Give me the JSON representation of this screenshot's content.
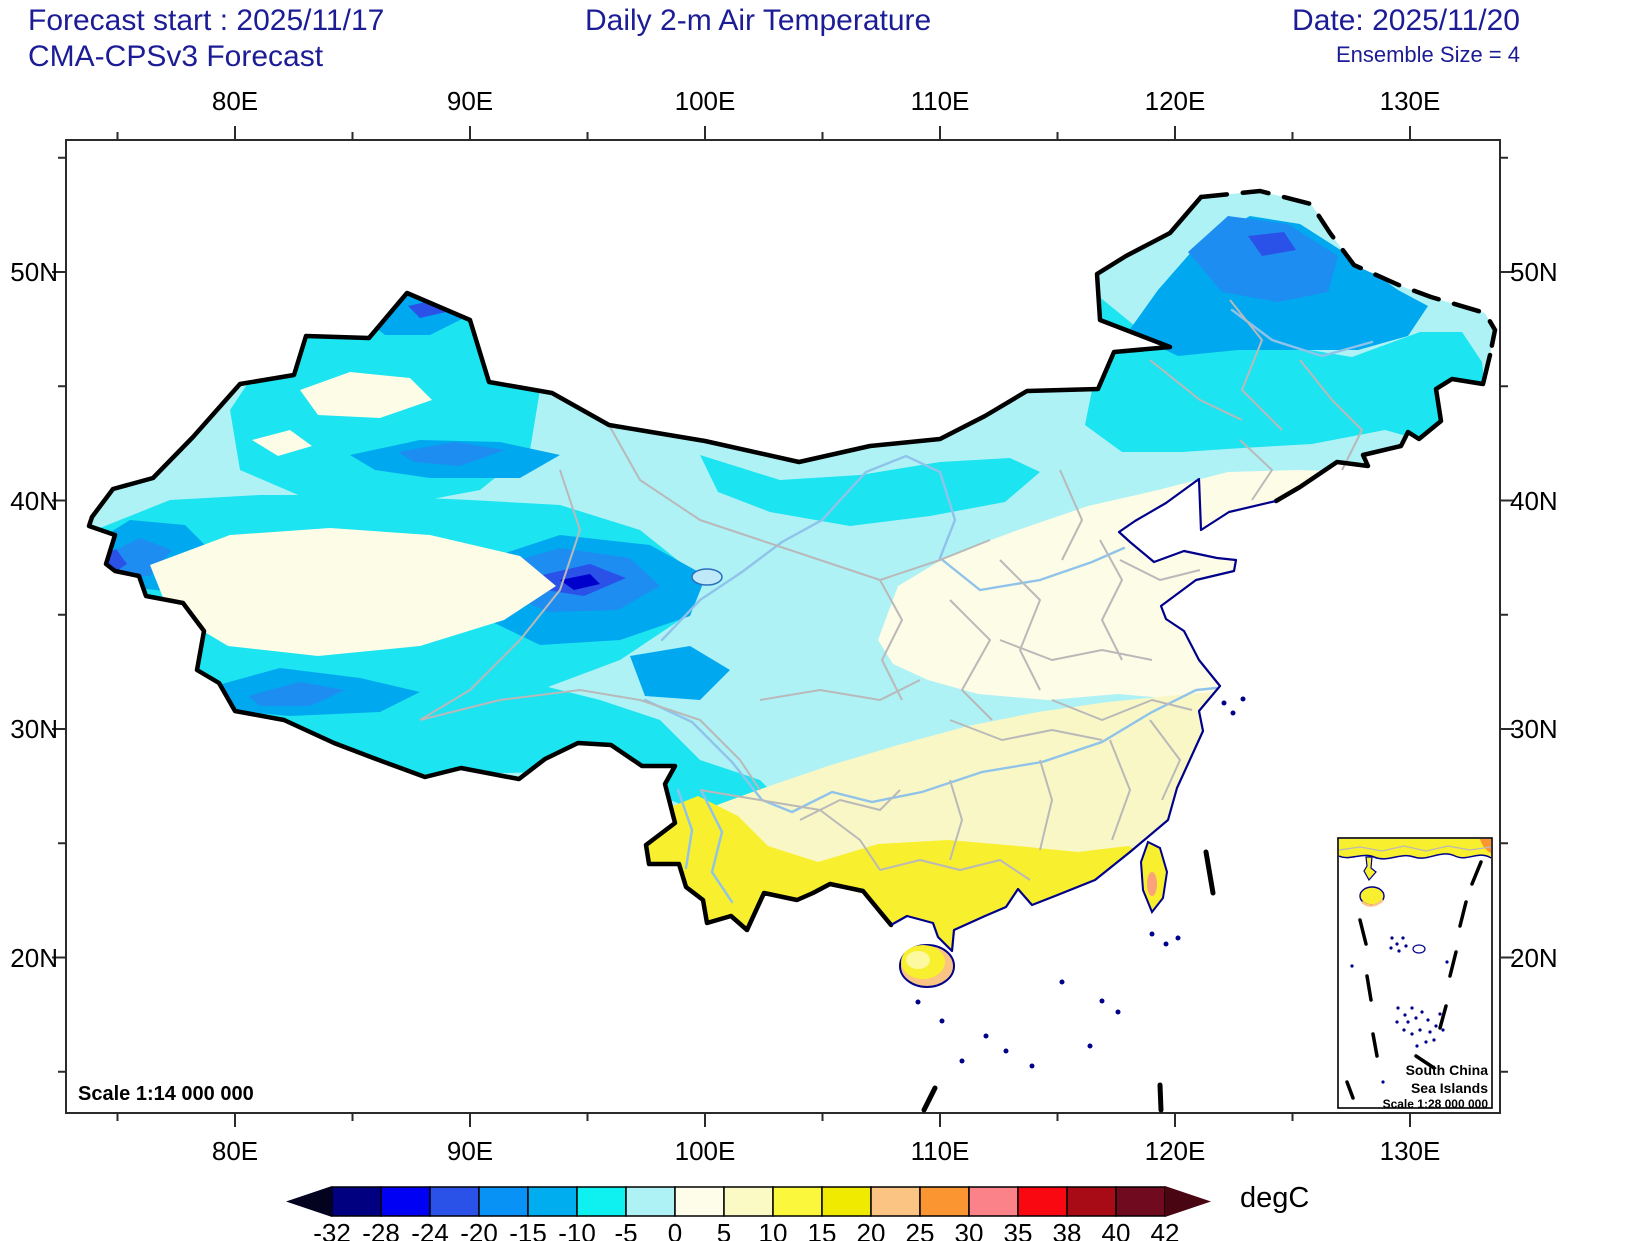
{
  "header": {
    "forecast_start": "Forecast start : 2025/11/17",
    "model": "CMA-CPSv3 Forecast",
    "title": "Daily 2-m Air Temperature",
    "date": "Date: 2025/11/20",
    "ensemble": "Ensemble Size = 4"
  },
  "axes": {
    "lon": {
      "labels": [
        "80E",
        "90E",
        "100E",
        "110E",
        "120E",
        "130E"
      ],
      "values": [
        80,
        90,
        100,
        110,
        120,
        130
      ],
      "minor": [
        75,
        85,
        95,
        105,
        115,
        125,
        135
      ]
    },
    "lat": {
      "labels": [
        "50N",
        "40N",
        "30N",
        "20N"
      ],
      "values": [
        50,
        40,
        30,
        20
      ],
      "minor": [
        55,
        45,
        35,
        25,
        15
      ]
    }
  },
  "map": {
    "scale_label": "Scale 1:14 000 000",
    "inset": {
      "line1": "South China",
      "line2": "Sea Islands",
      "line3": "Scale 1:28 000 000"
    }
  },
  "colorbar": {
    "unit": "degC",
    "boundary_labels": [
      "-32",
      "-28",
      "-24",
      "-20",
      "-15",
      "-10",
      "-5",
      "0",
      "5",
      "10",
      "15",
      "20",
      "25",
      "30",
      "35",
      "38",
      "40",
      "42"
    ],
    "cell_colors": [
      "#000080",
      "#0000f5",
      "#2a52e8",
      "#0992f5",
      "#00adee",
      "#0ff0f0",
      "#aef2f5",
      "#fdfde9",
      "#fbfac5",
      "#fbf73c",
      "#f0ea00",
      "#fbc483",
      "#fb9532",
      "#fb8289",
      "#f90812",
      "#a80b16",
      "#700a1e"
    ],
    "under_color": "#04031f",
    "over_color": "#4a0512",
    "outline": "#000000"
  },
  "map_palette": {
    "base_pale_cyan": "#aef2f6",
    "cyan": "#1ce4f0",
    "deep_sky": "#00a9ef",
    "dodger": "#1e8df2",
    "royal": "#2a52e8",
    "navy_spot": "#0000cd",
    "ivory": "#fdfce6",
    "light_yellow": "#faf7c6",
    "yellow": "#f8ef2e",
    "sandy": "#fbc483",
    "orange": "#fb9532",
    "salmon": "#f9a27b",
    "pale_yellow_spot": "#fcf9a0"
  },
  "colors": {
    "title": "#1c1c96",
    "axis_text": "#000000",
    "frame": "#2b2b2b",
    "border": "#000000",
    "coast": "#00008b",
    "province": "#b9b9b9",
    "river": "#8fc3ea",
    "lake_fill": "#bfe8f8",
    "lake_edge": "#2c6fbd",
    "dash_line": "#000000",
    "island_dot": "#00008b"
  }
}
